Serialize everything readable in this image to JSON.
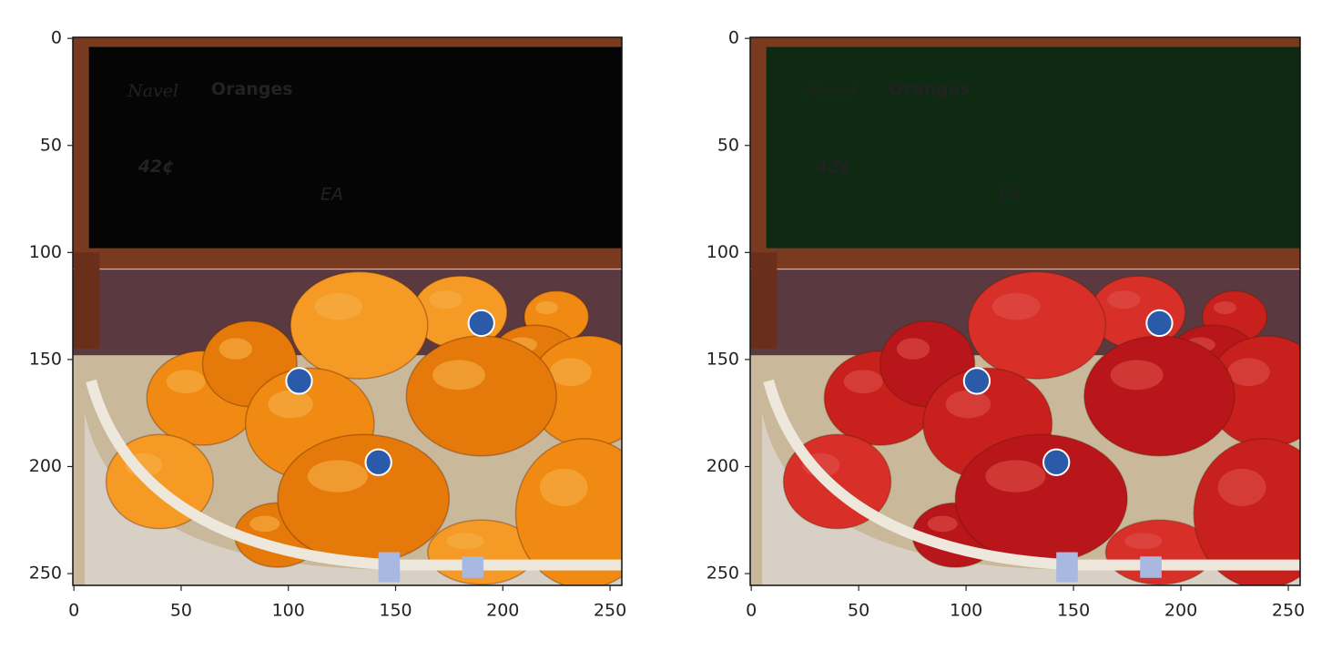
{
  "chart_data": [
    {
      "type": "image",
      "annotations": [
        "Navel",
        "Oranges",
        "42¢",
        "EA"
      ],
      "xlim": [
        -0.5,
        255.5
      ],
      "ylim": [
        255.5,
        -0.5
      ],
      "xticks": [
        0,
        50,
        100,
        150,
        200,
        250
      ],
      "yticks": [
        0,
        50,
        100,
        150,
        200,
        250
      ]
    },
    {
      "type": "image",
      "annotations": [
        "Navel",
        "Oranges",
        "42¢",
        "EA"
      ],
      "xlim": [
        -0.5,
        255.5
      ],
      "ylim": [
        255.5,
        -0.5
      ],
      "xticks": [
        0,
        50,
        100,
        150,
        200,
        250
      ],
      "yticks": [
        0,
        50,
        100,
        150,
        200,
        250
      ]
    }
  ]
}
